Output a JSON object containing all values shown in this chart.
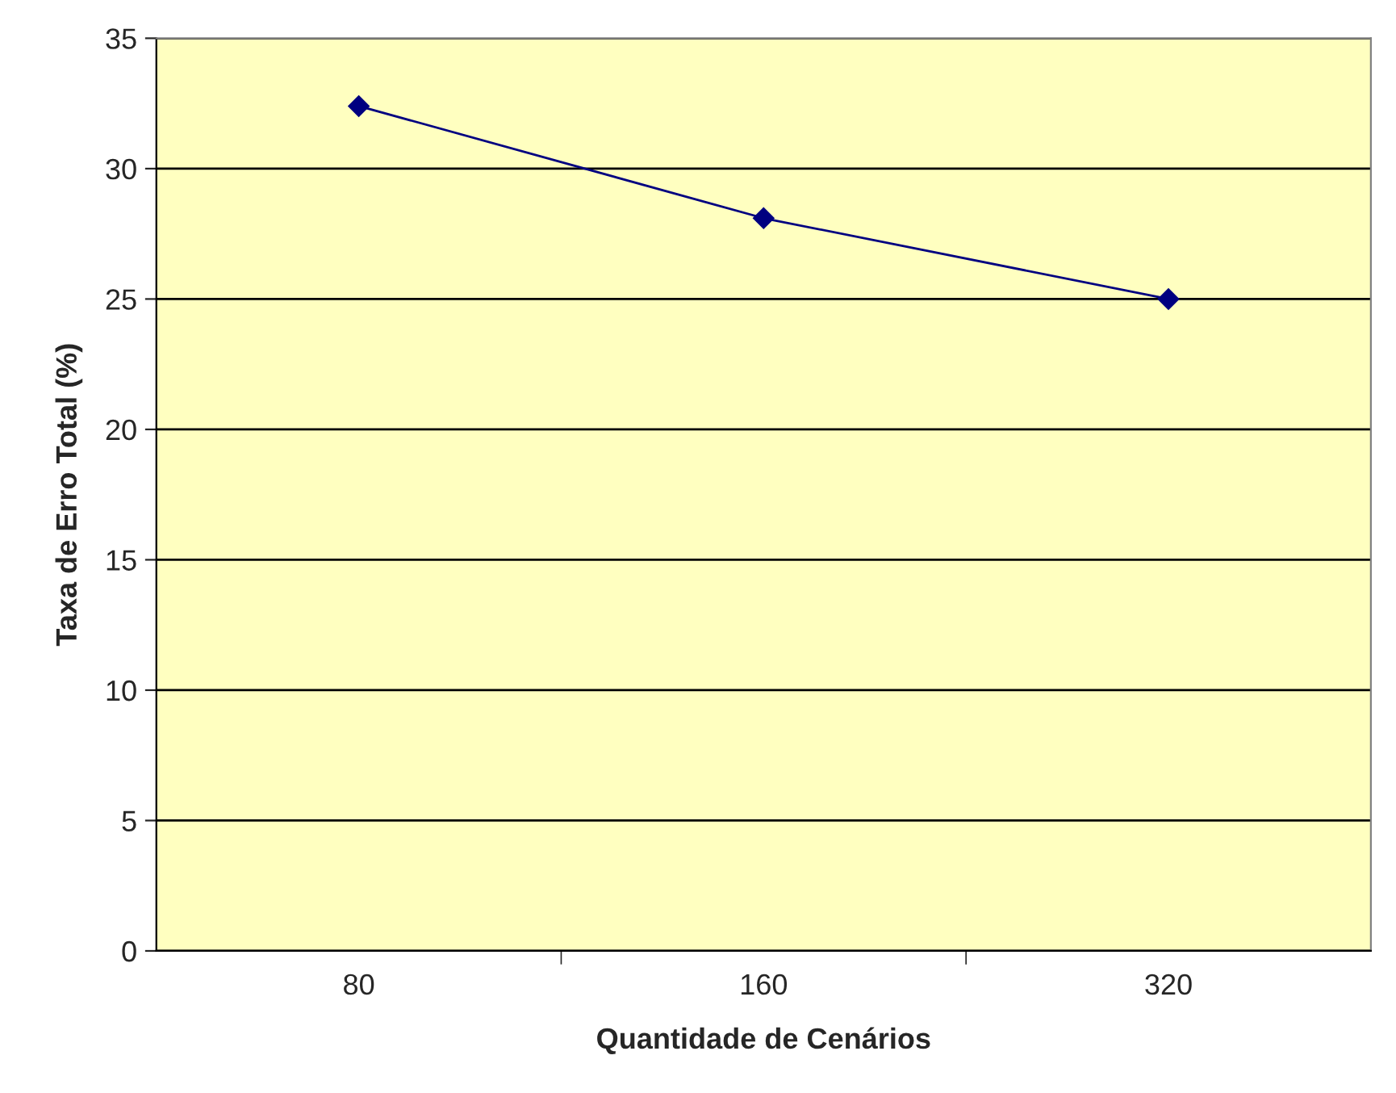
{
  "chart_data": {
    "type": "line",
    "xlabel": "Quantidade de Cenários",
    "ylabel": "Taxa de Erro Total (%)",
    "categories": [
      "80",
      "160",
      "320"
    ],
    "series": [
      {
        "color": "#000080",
        "values": [
          32.4,
          28.1,
          25.0
        ]
      }
    ],
    "ylim": [
      0,
      35
    ],
    "yticks": [
      0,
      5,
      10,
      15,
      20,
      25,
      30,
      35
    ],
    "grid": "y",
    "marker": "diamond",
    "line_style": "solid",
    "legend": false
  }
}
